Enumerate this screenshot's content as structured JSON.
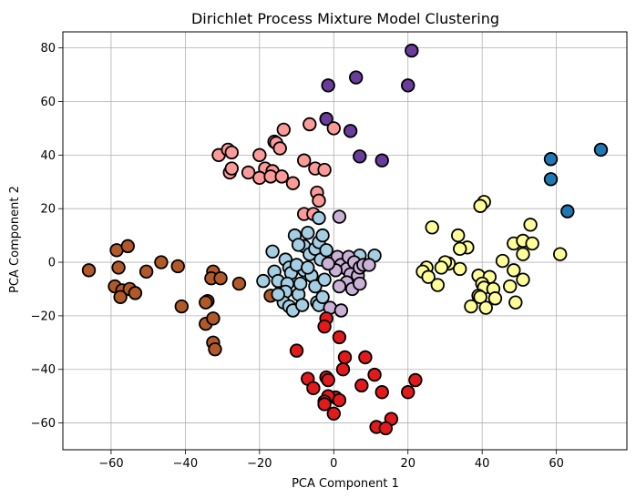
{
  "chart_data": {
    "type": "scatter",
    "title": "Dirichlet Process Mixture Model Clustering",
    "xlabel": "PCA Component 1",
    "ylabel": "PCA Component 2",
    "xlim": [
      -73,
      79
    ],
    "ylim": [
      -70,
      86
    ],
    "xticks": [
      -60,
      -40,
      -20,
      0,
      20,
      40,
      60
    ],
    "yticks": [
      -60,
      -40,
      -20,
      0,
      20,
      40,
      60,
      80
    ],
    "grid": true,
    "marker_edge_color": "#000000",
    "series": [
      {
        "color": "#6a3d9a",
        "points": [
          [
            21,
            79
          ],
          [
            6,
            69
          ],
          [
            20,
            66
          ],
          [
            -1.5,
            66
          ],
          [
            -2,
            53.5
          ],
          [
            4.5,
            49
          ],
          [
            7,
            39.5
          ],
          [
            13,
            38
          ]
        ]
      },
      {
        "color": "#1f78b4",
        "points": [
          [
            72,
            42
          ],
          [
            58.5,
            38.5
          ],
          [
            58.5,
            31
          ],
          [
            63,
            19
          ]
        ]
      },
      {
        "color": "#fb9a99",
        "points": [
          [
            -13.5,
            49.5
          ],
          [
            -6.5,
            51.5
          ],
          [
            0,
            50
          ],
          [
            -16,
            45
          ],
          [
            -15.5,
            44.5
          ],
          [
            -14.5,
            42.5
          ],
          [
            -8,
            38
          ],
          [
            -5,
            35
          ],
          [
            -2.5,
            34.5
          ],
          [
            -31,
            40
          ],
          [
            -28.5,
            42
          ],
          [
            -27.5,
            41
          ],
          [
            -23,
            33.5
          ],
          [
            -28,
            33.5
          ],
          [
            -27.5,
            35
          ],
          [
            -20,
            40
          ],
          [
            -18.5,
            35
          ],
          [
            -16.5,
            34
          ],
          [
            -20,
            31.5
          ],
          [
            -17,
            32
          ],
          [
            -14,
            32
          ],
          [
            -11,
            29.5
          ],
          [
            -4.5,
            26
          ],
          [
            -4,
            23
          ],
          [
            -8,
            18
          ],
          [
            -5.5,
            18
          ]
        ]
      },
      {
        "color": "#b15928",
        "points": [
          [
            -66,
            -3
          ],
          [
            -58.5,
            4.5
          ],
          [
            -55.5,
            6
          ],
          [
            -58,
            -2
          ],
          [
            -50.5,
            -3.5
          ],
          [
            -46.5,
            0
          ],
          [
            -42,
            -1.5
          ],
          [
            -59,
            -9
          ],
          [
            -57,
            -10.5
          ],
          [
            -57.5,
            -13
          ],
          [
            -55,
            -10
          ],
          [
            -53.5,
            -11.5
          ],
          [
            -41,
            -16.5
          ],
          [
            -32.5,
            -3.5
          ],
          [
            -33,
            -6
          ],
          [
            -30.5,
            -6
          ],
          [
            -25.5,
            -8
          ],
          [
            -34,
            -14.5
          ],
          [
            -34.5,
            -15
          ],
          [
            -34.5,
            -23
          ],
          [
            -32.5,
            -21
          ],
          [
            -32.5,
            -30
          ],
          [
            -32,
            -32.5
          ],
          [
            -17,
            -12.5
          ]
        ]
      },
      {
        "color": "#a6cee3",
        "points": [
          [
            -19,
            -7
          ],
          [
            -16.5,
            4
          ],
          [
            -16,
            -3.5
          ],
          [
            -15,
            -7
          ],
          [
            -13,
            1
          ],
          [
            -12,
            -2
          ],
          [
            -11.5,
            -4
          ],
          [
            -12.5,
            -8
          ],
          [
            -13,
            -11
          ],
          [
            -13.5,
            -15
          ],
          [
            -12,
            -16.5
          ],
          [
            -11,
            -18
          ],
          [
            -9.5,
            -12
          ],
          [
            -9,
            -8
          ],
          [
            -8,
            -3
          ],
          [
            -8,
            6
          ],
          [
            -7,
            11
          ],
          [
            -6.5,
            3
          ],
          [
            -6,
            -5
          ],
          [
            -5,
            -9
          ],
          [
            -4.5,
            -15
          ],
          [
            -4,
            -16
          ],
          [
            -5,
            5
          ],
          [
            -4,
            7.5
          ],
          [
            -3.5,
            1
          ],
          [
            -2.5,
            -6.5
          ],
          [
            -4,
            16.5
          ],
          [
            -3,
            10
          ],
          [
            -2,
            4.5
          ],
          [
            -3,
            -13
          ],
          [
            -8.5,
            -16
          ],
          [
            -10,
            -1
          ],
          [
            -7,
            -2
          ],
          [
            -10.5,
            10
          ],
          [
            -9.5,
            6.5
          ],
          [
            -15,
            -12
          ],
          [
            7,
            2.5
          ],
          [
            11,
            2.5
          ],
          [
            4.5,
            -2
          ]
        ]
      },
      {
        "color": "#cab2d6",
        "points": [
          [
            1.5,
            17
          ],
          [
            1,
            2
          ],
          [
            2,
            -1
          ],
          [
            3.5,
            -2.5
          ],
          [
            4,
            2
          ],
          [
            5.5,
            0
          ],
          [
            4.5,
            -4.5
          ],
          [
            6.5,
            -5
          ],
          [
            7,
            -2
          ],
          [
            8,
            -1
          ],
          [
            9.5,
            -1
          ],
          [
            3.5,
            -7.5
          ],
          [
            5,
            -10
          ],
          [
            7,
            -8
          ],
          [
            1.5,
            -9
          ],
          [
            -1,
            -17
          ],
          [
            2,
            -18
          ],
          [
            0.5,
            -3
          ],
          [
            -1.5,
            -0.5
          ]
        ]
      },
      {
        "color": "#ffff99",
        "points": [
          [
            40.5,
            22.5
          ],
          [
            39.5,
            21
          ],
          [
            26.5,
            13
          ],
          [
            53,
            14
          ],
          [
            33.5,
            10
          ],
          [
            48.5,
            7
          ],
          [
            51,
            8
          ],
          [
            53.5,
            7
          ],
          [
            36,
            5.5
          ],
          [
            34,
            5
          ],
          [
            51,
            3
          ],
          [
            61,
            3
          ],
          [
            45.5,
            0.5
          ],
          [
            31,
            -0.5
          ],
          [
            30,
            0
          ],
          [
            29,
            -2
          ],
          [
            25,
            -2
          ],
          [
            24,
            -3.5
          ],
          [
            25.5,
            -5.5
          ],
          [
            34,
            -2.5
          ],
          [
            28,
            -8.5
          ],
          [
            39,
            -5
          ],
          [
            42,
            -5.5
          ],
          [
            48.5,
            -3
          ],
          [
            51,
            -6.5
          ],
          [
            47.5,
            -9
          ],
          [
            40,
            -8
          ],
          [
            40.5,
            -9.5
          ],
          [
            39,
            -12.5
          ],
          [
            43,
            -10
          ],
          [
            43.5,
            -13.5
          ],
          [
            39.5,
            -13
          ],
          [
            49,
            -15
          ],
          [
            37,
            -16.5
          ],
          [
            41,
            -17
          ]
        ]
      },
      {
        "color": "#e31a1c",
        "points": [
          [
            -10,
            -33
          ],
          [
            -2,
            -21
          ],
          [
            1.5,
            -28
          ],
          [
            -2.5,
            -24
          ],
          [
            3,
            -35.5
          ],
          [
            8.5,
            -35.5
          ],
          [
            2.5,
            -40
          ],
          [
            -7,
            -43.5
          ],
          [
            -2,
            -43
          ],
          [
            -1.5,
            -44
          ],
          [
            7.5,
            -46
          ],
          [
            11,
            -42
          ],
          [
            -5.5,
            -47
          ],
          [
            13,
            -48.5
          ],
          [
            22,
            -44
          ],
          [
            20,
            -48.5
          ],
          [
            0.5,
            -50.5
          ],
          [
            -1.5,
            -50
          ],
          [
            1.5,
            -51.5
          ],
          [
            -2.5,
            -52
          ],
          [
            -2.5,
            -53
          ],
          [
            0,
            -56.5
          ],
          [
            15.5,
            -58.5
          ],
          [
            11.5,
            -61.5
          ],
          [
            14,
            -62
          ]
        ]
      }
    ]
  }
}
